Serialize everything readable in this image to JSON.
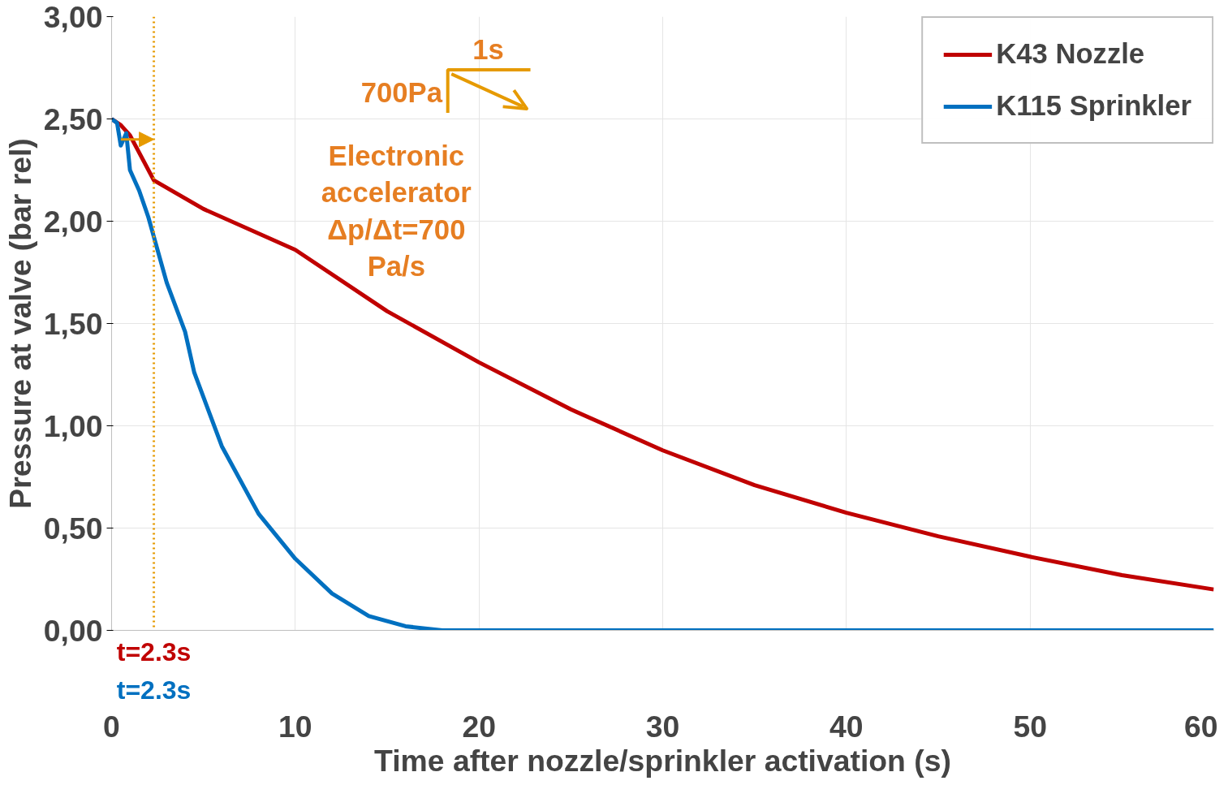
{
  "chart_data": {
    "type": "line",
    "xlabel": "Time after nozzle/sprinkler activation (s)",
    "ylabel": "Pressure at valve (bar rel)",
    "xlim": [
      0,
      60
    ],
    "xticks": [
      0,
      10,
      20,
      30,
      40,
      50,
      60
    ],
    "ylim": [
      0,
      3
    ],
    "yticks": [
      {
        "value": 0,
        "label": "0,00"
      },
      {
        "value": 0.5,
        "label": "0,50"
      },
      {
        "value": 1,
        "label": "1,00"
      },
      {
        "value": 1.5,
        "label": "1,50"
      },
      {
        "value": 2,
        "label": "2,00"
      },
      {
        "value": 2.5,
        "label": "2,50"
      },
      {
        "value": 3,
        "label": "3,00"
      }
    ],
    "grid": true,
    "legend": "top right",
    "line_style": "solid",
    "marker": "none",
    "series": [
      {
        "name": "K43 Nozzle",
        "color": "#c00000",
        "x": [
          0,
          0.5,
          1,
          2.3,
          5,
          10,
          15,
          20,
          25,
          30,
          35,
          40,
          45,
          50,
          55,
          60
        ],
        "values": [
          2.5,
          2.47,
          2.42,
          2.2,
          2.06,
          1.86,
          1.56,
          1.31,
          1.08,
          0.88,
          0.71,
          0.575,
          0.46,
          0.36,
          0.27,
          0.2
        ]
      },
      {
        "name": "K115 Sprinkler",
        "color": "#0070c0",
        "x": [
          0,
          0.3,
          0.5,
          0.8,
          1,
          1.5,
          2,
          3,
          4,
          4.5,
          6,
          8,
          10,
          12,
          14,
          16,
          18,
          30,
          60
        ],
        "values": [
          2.5,
          2.48,
          2.37,
          2.43,
          2.25,
          2.15,
          2.02,
          1.7,
          1.46,
          1.26,
          0.9,
          0.57,
          0.35,
          0.18,
          0.07,
          0.02,
          0,
          0,
          0
        ]
      }
    ],
    "ref_lines": [
      {
        "axis": "x",
        "value": 2.3,
        "color": "#e69a00",
        "line_style": "dotted"
      }
    ],
    "annotations": [
      "t=2.3s",
      "t=2.3s",
      "Electronic accelerator Δp/Δt=700 Pa/s",
      "700Pa",
      "1s"
    ]
  }
}
